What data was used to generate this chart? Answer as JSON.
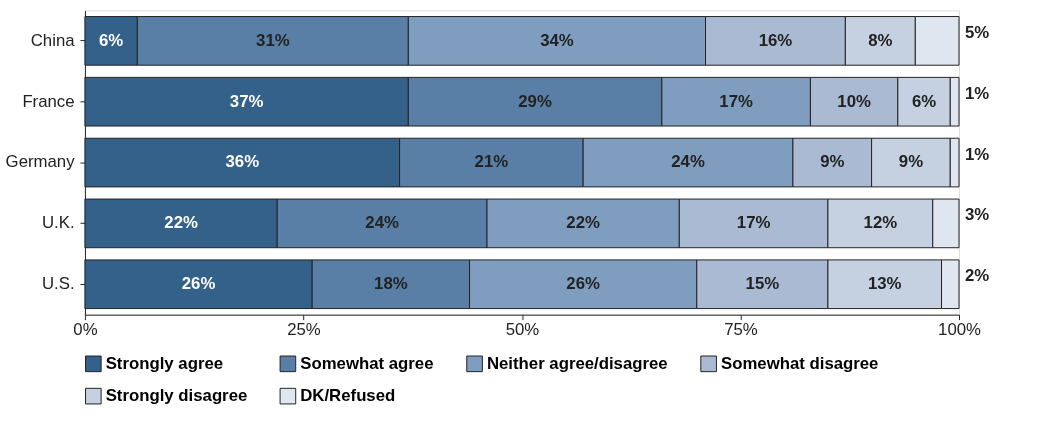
{
  "chart_data": {
    "type": "bar",
    "orientation": "horizontal",
    "stacked": true,
    "categories": [
      "China",
      "France",
      "Germany",
      "U.K.",
      "U.S."
    ],
    "series": [
      {
        "name": "Strongly agree",
        "color": "#336189",
        "values": [
          6,
          37,
          36,
          22,
          26
        ],
        "value_labels": [
          "6%",
          "37%",
          "36%",
          "22%",
          "26%"
        ]
      },
      {
        "name": "Somewhat agree",
        "color": "#5a7fa6",
        "values": [
          31,
          29,
          21,
          24,
          18
        ],
        "value_labels": [
          "31%",
          "29%",
          "21%",
          "24%",
          "18%"
        ]
      },
      {
        "name": "Neither agree/disagree",
        "color": "#7f9dbf",
        "values": [
          34,
          17,
          24,
          22,
          26
        ],
        "value_labels": [
          "34%",
          "17%",
          "24%",
          "22%",
          "26%"
        ]
      },
      {
        "name": "Somewhat disagree",
        "color": "#a9bad2",
        "values": [
          16,
          10,
          9,
          17,
          15
        ],
        "value_labels": [
          "16%",
          "10%",
          "9%",
          "17%",
          "15%"
        ]
      },
      {
        "name": "Strongly disagree",
        "color": "#c5d0e0",
        "values": [
          8,
          6,
          9,
          12,
          13
        ],
        "value_labels": [
          "8%",
          "6%",
          "9%",
          "12%",
          "13%"
        ]
      },
      {
        "name": "DK/Refused",
        "color": "#e0e6ef",
        "values": [
          5,
          1,
          1,
          3,
          2
        ],
        "value_labels": [
          "5%",
          "1%",
          "1%",
          "3%",
          "2%"
        ]
      }
    ],
    "xlim": [
      0,
      100
    ],
    "xticks": [
      {
        "value": 0,
        "label": "0%"
      },
      {
        "value": 25,
        "label": "25%"
      },
      {
        "value": 50,
        "label": "50%"
      },
      {
        "value": 75,
        "label": "75%"
      },
      {
        "value": 100,
        "label": "100%"
      }
    ],
    "grid": false,
    "legend": "bottom"
  }
}
